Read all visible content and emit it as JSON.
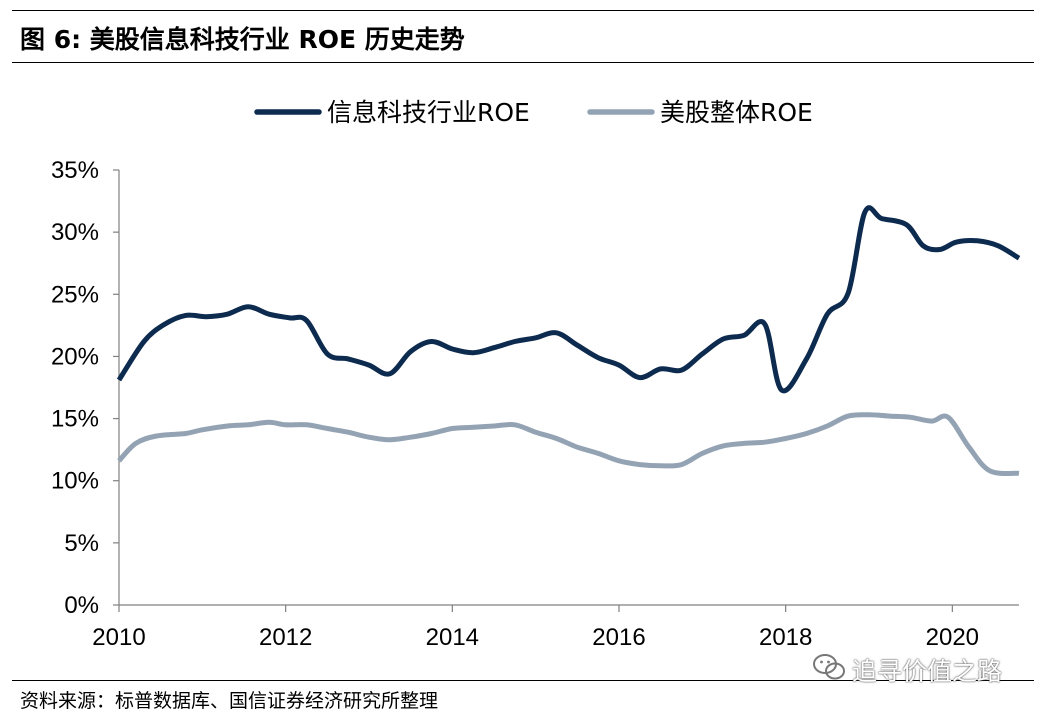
{
  "title": "图 6:  美股信息科技行业 ROE 历史走势",
  "source": "资料来源：标普数据库、国信证券经济研究所整理",
  "watermark": {
    "icon": "wechat-icon",
    "text": "追寻价值之路"
  },
  "chart_data": {
    "type": "line",
    "title": "美股信息科技行业 ROE 历史走势",
    "xlabel": "",
    "ylabel": "",
    "xlim": [
      2010,
      2020.8
    ],
    "ylim": [
      0,
      35
    ],
    "y_ticks": [
      0,
      5,
      10,
      15,
      20,
      25,
      30,
      35
    ],
    "y_tick_labels": [
      "0%",
      "5%",
      "10%",
      "15%",
      "20%",
      "25%",
      "30%",
      "35%"
    ],
    "x_ticks": [
      2010,
      2012,
      2014,
      2016,
      2018,
      2020
    ],
    "x_tick_labels": [
      "2010",
      "2012",
      "2014",
      "2016",
      "2018",
      "2020"
    ],
    "grid": false,
    "legend_position": "top-center",
    "series": [
      {
        "name": "信息科技行业ROE",
        "color": "#0d2a4f",
        "x": [
          2010.0,
          2010.3,
          2010.55,
          2010.8,
          2011.05,
          2011.3,
          2011.55,
          2011.8,
          2012.05,
          2012.25,
          2012.5,
          2012.75,
          2013.0,
          2013.25,
          2013.5,
          2013.75,
          2014.0,
          2014.25,
          2014.5,
          2014.75,
          2015.0,
          2015.25,
          2015.5,
          2015.75,
          2016.0,
          2016.25,
          2016.5,
          2016.75,
          2017.0,
          2017.25,
          2017.5,
          2017.75,
          2017.95,
          2018.25,
          2018.5,
          2018.75,
          2018.95,
          2019.15,
          2019.45,
          2019.65,
          2019.85,
          2020.05,
          2020.3,
          2020.55,
          2020.8
        ],
        "values": [
          18.1,
          21.2,
          22.6,
          23.3,
          23.2,
          23.4,
          24.0,
          23.4,
          23.1,
          22.9,
          20.2,
          19.8,
          19.3,
          18.6,
          20.4,
          21.2,
          20.6,
          20.3,
          20.7,
          21.2,
          21.5,
          21.9,
          20.9,
          19.9,
          19.3,
          18.3,
          19.0,
          18.9,
          20.2,
          21.4,
          21.7,
          22.6,
          17.3,
          19.8,
          23.4,
          25.1,
          31.6,
          31.1,
          30.6,
          28.9,
          28.6,
          29.2,
          29.3,
          28.9,
          27.9
        ]
      },
      {
        "name": "美股整体ROE",
        "color": "#94a3b4",
        "x": [
          2010.0,
          2010.2,
          2010.45,
          2010.8,
          2011.0,
          2011.3,
          2011.55,
          2011.8,
          2012.0,
          2012.25,
          2012.5,
          2012.75,
          2013.0,
          2013.25,
          2013.5,
          2013.75,
          2014.0,
          2014.25,
          2014.5,
          2014.75,
          2015.0,
          2015.25,
          2015.5,
          2015.75,
          2016.0,
          2016.25,
          2016.5,
          2016.75,
          2017.0,
          2017.25,
          2017.5,
          2017.75,
          2018.0,
          2018.25,
          2018.5,
          2018.75,
          2019.0,
          2019.25,
          2019.5,
          2019.75,
          2019.95,
          2020.2,
          2020.45,
          2020.8
        ],
        "values": [
          11.6,
          13.0,
          13.6,
          13.8,
          14.1,
          14.4,
          14.5,
          14.7,
          14.5,
          14.5,
          14.2,
          13.9,
          13.5,
          13.3,
          13.5,
          13.8,
          14.2,
          14.3,
          14.4,
          14.5,
          13.9,
          13.4,
          12.7,
          12.2,
          11.6,
          11.3,
          11.2,
          11.3,
          12.2,
          12.8,
          13.0,
          13.1,
          13.4,
          13.8,
          14.4,
          15.2,
          15.3,
          15.2,
          15.1,
          14.8,
          15.1,
          12.7,
          10.8,
          10.6
        ]
      }
    ]
  }
}
